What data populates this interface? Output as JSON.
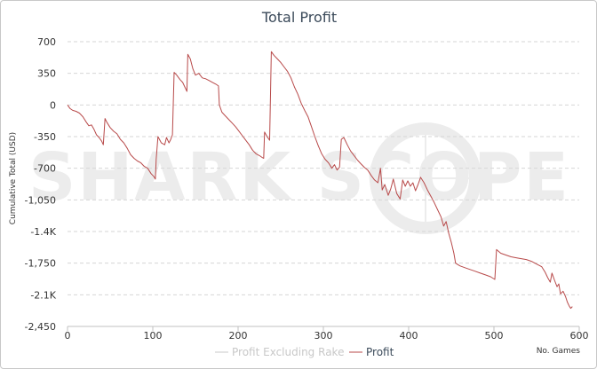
{
  "chart_data": {
    "type": "line",
    "title": "Total Profit",
    "xlabel": "No. Games",
    "ylabel": "Cumulative Total (USD)",
    "xlim": [
      0,
      600
    ],
    "ylim": [
      -2450,
      700
    ],
    "x_ticks": [
      0,
      100,
      200,
      300,
      400,
      500,
      600
    ],
    "x_tick_labels": [
      "0",
      "100",
      "200",
      "300",
      "400",
      "500",
      "600"
    ],
    "y_ticks": [
      700,
      350,
      0,
      -350,
      -700,
      -1050,
      -1400,
      -1750,
      -2100,
      -2450
    ],
    "y_tick_labels": [
      "700",
      "350",
      "0",
      "-350",
      "-700",
      "-1,050",
      "-1.4K",
      "-1,750",
      "-2.1K",
      "-2,450"
    ],
    "grid": "horizontal dashed",
    "legend_position": "bottom-center",
    "watermark": "SHARK SCOPE",
    "series": [
      {
        "name": "Profit Excluding Rake",
        "color": "#c8c8c8",
        "visible": false,
        "points": []
      },
      {
        "name": "Profit",
        "color": "#b84a4a",
        "visible": true,
        "points": [
          [
            0,
            0
          ],
          [
            3,
            -40
          ],
          [
            6,
            -60
          ],
          [
            10,
            -70
          ],
          [
            14,
            -90
          ],
          [
            18,
            -130
          ],
          [
            22,
            -190
          ],
          [
            25,
            -230
          ],
          [
            28,
            -220
          ],
          [
            31,
            -270
          ],
          [
            34,
            -330
          ],
          [
            37,
            -360
          ],
          [
            40,
            -400
          ],
          [
            42,
            -440
          ],
          [
            44,
            -150
          ],
          [
            46,
            -190
          ],
          [
            50,
            -250
          ],
          [
            54,
            -290
          ],
          [
            58,
            -320
          ],
          [
            62,
            -380
          ],
          [
            66,
            -420
          ],
          [
            70,
            -480
          ],
          [
            74,
            -550
          ],
          [
            78,
            -590
          ],
          [
            82,
            -620
          ],
          [
            86,
            -640
          ],
          [
            90,
            -680
          ],
          [
            94,
            -700
          ],
          [
            98,
            -760
          ],
          [
            101,
            -790
          ],
          [
            103,
            -820
          ],
          [
            104,
            -600
          ],
          [
            106,
            -350
          ],
          [
            110,
            -420
          ],
          [
            114,
            -440
          ],
          [
            116,
            -360
          ],
          [
            119,
            -420
          ],
          [
            121,
            -380
          ],
          [
            123,
            -330
          ],
          [
            125,
            360
          ],
          [
            128,
            330
          ],
          [
            132,
            280
          ],
          [
            135,
            250
          ],
          [
            138,
            190
          ],
          [
            140,
            150
          ],
          [
            141,
            560
          ],
          [
            144,
            510
          ],
          [
            147,
            400
          ],
          [
            150,
            330
          ],
          [
            154,
            350
          ],
          [
            158,
            300
          ],
          [
            162,
            290
          ],
          [
            166,
            270
          ],
          [
            170,
            250
          ],
          [
            174,
            230
          ],
          [
            177,
            210
          ],
          [
            178,
            0
          ],
          [
            181,
            -80
          ],
          [
            185,
            -120
          ],
          [
            189,
            -160
          ],
          [
            193,
            -200
          ],
          [
            197,
            -240
          ],
          [
            201,
            -290
          ],
          [
            205,
            -340
          ],
          [
            209,
            -390
          ],
          [
            213,
            -440
          ],
          [
            217,
            -500
          ],
          [
            221,
            -540
          ],
          [
            225,
            -560
          ],
          [
            228,
            -580
          ],
          [
            230,
            -590
          ],
          [
            231,
            -300
          ],
          [
            234,
            -350
          ],
          [
            237,
            -390
          ],
          [
            239,
            590
          ],
          [
            242,
            550
          ],
          [
            246,
            510
          ],
          [
            250,
            470
          ],
          [
            254,
            420
          ],
          [
            258,
            370
          ],
          [
            262,
            300
          ],
          [
            266,
            200
          ],
          [
            270,
            120
          ],
          [
            274,
            20
          ],
          [
            278,
            -60
          ],
          [
            282,
            -130
          ],
          [
            286,
            -240
          ],
          [
            290,
            -350
          ],
          [
            294,
            -450
          ],
          [
            298,
            -540
          ],
          [
            302,
            -600
          ],
          [
            306,
            -640
          ],
          [
            310,
            -700
          ],
          [
            313,
            -660
          ],
          [
            316,
            -720
          ],
          [
            319,
            -690
          ],
          [
            321,
            -380
          ],
          [
            324,
            -360
          ],
          [
            328,
            -440
          ],
          [
            332,
            -510
          ],
          [
            336,
            -560
          ],
          [
            340,
            -610
          ],
          [
            344,
            -650
          ],
          [
            348,
            -690
          ],
          [
            352,
            -720
          ],
          [
            356,
            -780
          ],
          [
            360,
            -830
          ],
          [
            364,
            -860
          ],
          [
            367,
            -700
          ],
          [
            369,
            -940
          ],
          [
            372,
            -880
          ],
          [
            376,
            -1000
          ],
          [
            379,
            -930
          ],
          [
            382,
            -820
          ],
          [
            386,
            -980
          ],
          [
            390,
            -1040
          ],
          [
            393,
            -830
          ],
          [
            396,
            -900
          ],
          [
            399,
            -840
          ],
          [
            402,
            -900
          ],
          [
            405,
            -860
          ],
          [
            408,
            -950
          ],
          [
            411,
            -880
          ],
          [
            414,
            -800
          ],
          [
            418,
            -860
          ],
          [
            422,
            -940
          ],
          [
            426,
            -1010
          ],
          [
            430,
            -1080
          ],
          [
            434,
            -1160
          ],
          [
            438,
            -1240
          ],
          [
            441,
            -1340
          ],
          [
            444,
            -1290
          ],
          [
            447,
            -1420
          ],
          [
            450,
            -1520
          ],
          [
            453,
            -1640
          ],
          [
            455,
            -1750
          ],
          [
            460,
            -1780
          ],
          [
            466,
            -1800
          ],
          [
            472,
            -1820
          ],
          [
            478,
            -1840
          ],
          [
            484,
            -1860
          ],
          [
            490,
            -1880
          ],
          [
            496,
            -1900
          ],
          [
            501,
            -1930
          ],
          [
            503,
            -1600
          ],
          [
            508,
            -1640
          ],
          [
            514,
            -1660
          ],
          [
            520,
            -1680
          ],
          [
            526,
            -1690
          ],
          [
            532,
            -1700
          ],
          [
            538,
            -1710
          ],
          [
            544,
            -1730
          ],
          [
            550,
            -1760
          ],
          [
            556,
            -1790
          ],
          [
            560,
            -1850
          ],
          [
            563,
            -1910
          ],
          [
            566,
            -1960
          ],
          [
            568,
            -1860
          ],
          [
            571,
            -1940
          ],
          [
            574,
            -2010
          ],
          [
            576,
            -1980
          ],
          [
            578,
            -2090
          ],
          [
            581,
            -2060
          ],
          [
            584,
            -2120
          ],
          [
            586,
            -2180
          ],
          [
            588,
            -2220
          ],
          [
            590,
            -2250
          ],
          [
            592,
            -2230
          ]
        ]
      }
    ]
  }
}
